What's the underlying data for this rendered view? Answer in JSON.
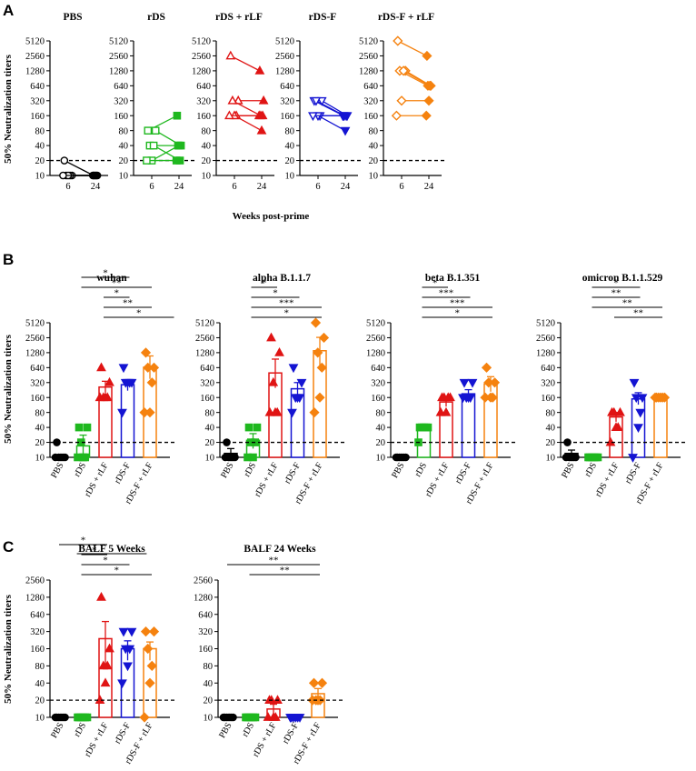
{
  "figure": {
    "panel_labels": [
      "A",
      "B",
      "C"
    ],
    "y_axis_label": "50% Neutralization titers",
    "a_x_axis_label": "Weeks post-prime",
    "threshold_titer": 20
  },
  "colors": {
    "PBS": "#000000",
    "rDS": "#1fb81f",
    "rDS + rLF": "#e01414",
    "rDS-F": "#1414d2",
    "rDS-F + rLF": "#f5820f"
  },
  "chart_data": [
    {
      "id": "A",
      "type": "scatter",
      "subtype": "paired-lines",
      "y_scale": "log2",
      "yticks": [
        10,
        20,
        40,
        80,
        160,
        320,
        640,
        1280,
        2560,
        5120
      ],
      "ylim": [
        10,
        5120
      ],
      "xticks": [
        6,
        24
      ],
      "xlabel": "Weeks post-prime",
      "ylabel": "50% Neutralization titers",
      "threshold": 20,
      "subplots": [
        {
          "title": "PBS",
          "group": "PBS",
          "pairs": [
            [
              20,
              10
            ],
            [
              10,
              10
            ],
            [
              10,
              10
            ],
            [
              10,
              10
            ],
            [
              10,
              10
            ],
            [
              10,
              10
            ]
          ]
        },
        {
          "title": "rDS",
          "group": "rDS",
          "pairs": [
            [
              80,
              160
            ],
            [
              80,
              40
            ],
            [
              40,
              40
            ],
            [
              40,
              20
            ],
            [
              20,
              40
            ],
            [
              20,
              20
            ]
          ]
        },
        {
          "title": "rDS + rLF",
          "group": "rDS + rLF",
          "pairs": [
            [
              2560,
              1280
            ],
            [
              320,
              320
            ],
            [
              320,
              160
            ],
            [
              160,
              160
            ],
            [
              160,
              80
            ],
            [
              160,
              160
            ]
          ]
        },
        {
          "title": "rDS-F",
          "group": "rDS-F",
          "pairs": [
            [
              320,
              160
            ],
            [
              320,
              160
            ],
            [
              320,
              160
            ],
            [
              160,
              160
            ],
            [
              160,
              80
            ],
            [
              160,
              160
            ]
          ]
        },
        {
          "title": "rDS-F + rLF",
          "group": "rDS-F + rLF",
          "pairs": [
            [
              5120,
              2560
            ],
            [
              1280,
              640
            ],
            [
              1280,
              640
            ],
            [
              1280,
              640
            ],
            [
              320,
              320
            ],
            [
              160,
              160
            ]
          ]
        }
      ]
    },
    {
      "id": "B",
      "type": "bar",
      "y_scale": "log2",
      "yticks": [
        10,
        20,
        40,
        80,
        160,
        320,
        640,
        1280,
        2560,
        5120
      ],
      "ylim": [
        10,
        5120
      ],
      "ylabel": "50% Neutralization titers",
      "categories": [
        "PBS",
        "rDS",
        "rDS + rLF",
        "rDS-F",
        "rDS-F + rLF"
      ],
      "threshold": 20,
      "subplots": [
        {
          "title": "wuhan",
          "means": [
            10,
            17,
            260,
            290,
            650
          ],
          "err_upper": [
            10,
            28,
            340,
            360,
            1100
          ],
          "err_lower": [
            10,
            11,
            200,
            220,
            380
          ],
          "points": [
            [
              20,
              10,
              10,
              10,
              10,
              10
            ],
            [
              40,
              40,
              20,
              10,
              10,
              10
            ],
            [
              640,
              320,
              160,
              160,
              160,
              160
            ],
            [
              640,
              320,
              320,
              320,
              320,
              80
            ],
            [
              1280,
              640,
              640,
              320,
              80,
              80
            ]
          ],
          "significance": [
            {
              "from": 2,
              "to": 5,
              "label": "*"
            },
            {
              "from": 2,
              "to": 4,
              "label": "**"
            },
            {
              "from": 2,
              "to": 3,
              "label": "*"
            },
            {
              "from": 1,
              "to": 4,
              "label": "**"
            },
            {
              "from": 1,
              "to": 3,
              "label": "*"
            }
          ]
        },
        {
          "title": "alpha B.1.1.7",
          "means": [
            12,
            22,
            500,
            240,
            1400
          ],
          "err_upper": [
            15,
            30,
            950,
            320,
            2600
          ],
          "err_lower": [
            10,
            15,
            250,
            180,
            700
          ],
          "points": [
            [
              20,
              10,
              10,
              10,
              10,
              10
            ],
            [
              40,
              40,
              20,
              20,
              10,
              10
            ],
            [
              2560,
              1280,
              320,
              80,
              80,
              80
            ],
            [
              640,
              320,
              160,
              160,
              160,
              80
            ],
            [
              5120,
              2560,
              1280,
              640,
              160,
              80
            ]
          ],
          "significance": [
            {
              "from": 1,
              "to": 4,
              "label": "*"
            },
            {
              "from": 1,
              "to": 4,
              "label": "***"
            },
            {
              "from": 1,
              "to": 3,
              "label": "*"
            },
            {
              "from": 1,
              "to": 2,
              "label": "*"
            }
          ]
        },
        {
          "title": "beta B.1.351",
          "means": [
            10,
            38,
            130,
            190,
            300
          ],
          "err_upper": [
            10,
            42,
            160,
            230,
            420
          ],
          "err_lower": [
            10,
            34,
            105,
            160,
            210
          ],
          "points": [
            [
              10,
              10,
              10,
              10,
              10,
              10
            ],
            [
              40,
              40,
              40,
              40,
              40,
              20
            ],
            [
              160,
              160,
              160,
              160,
              80,
              80
            ],
            [
              320,
              320,
              160,
              160,
              160,
              160
            ],
            [
              640,
              320,
              320,
              160,
              160,
              160
            ]
          ],
          "significance": [
            {
              "from": 1,
              "to": 4,
              "label": "*"
            },
            {
              "from": 1,
              "to": 4,
              "label": "***"
            },
            {
              "from": 1,
              "to": 3,
              "label": "***"
            },
            {
              "from": 1,
              "to": 2,
              "label": "*"
            }
          ]
        },
        {
          "title": "omicron B.1.1.529",
          "means": [
            12,
            10,
            65,
            150,
            150
          ],
          "err_upper": [
            14,
            10,
            80,
            200,
            160
          ],
          "err_lower": [
            10,
            10,
            52,
            115,
            140
          ],
          "points": [
            [
              20,
              10,
              10,
              10,
              10,
              10
            ],
            [
              10,
              10,
              10,
              10,
              10,
              10
            ],
            [
              80,
              80,
              80,
              40,
              40,
              20
            ],
            [
              320,
              160,
              160,
              80,
              40,
              10
            ],
            [
              160,
              160,
              160,
              160,
              160,
              160
            ]
          ],
          "significance": [
            {
              "from": 2,
              "to": 4,
              "label": "**"
            },
            {
              "from": 1,
              "to": 4,
              "label": "**"
            },
            {
              "from": 1,
              "to": 3,
              "label": "**"
            },
            {
              "from": 1,
              "to": 3,
              "label": "*"
            }
          ]
        }
      ]
    },
    {
      "id": "C",
      "type": "bar",
      "y_scale": "log2",
      "yticks": [
        10,
        20,
        40,
        80,
        160,
        320,
        640,
        1280,
        2560
      ],
      "ylim": [
        10,
        2560
      ],
      "ylabel": "50% Neutralization titers",
      "categories": [
        "PBS",
        "rDS",
        "rDS + rLF",
        "rDS-F",
        "rDS-F + rLF"
      ],
      "threshold": 20,
      "subplots": [
        {
          "title": "BALF 5 Weeks",
          "means": [
            10,
            10,
            240,
            160,
            160
          ],
          "err_upper": [
            10,
            10,
            480,
            220,
            210
          ],
          "err_lower": [
            10,
            10,
            70,
            100,
            100
          ],
          "points": [
            [
              10,
              10,
              10,
              10,
              10,
              10
            ],
            [
              10,
              10,
              10,
              10,
              10,
              10
            ],
            [
              1280,
              160,
              80,
              80,
              40,
              20
            ],
            [
              320,
              320,
              160,
              160,
              80,
              40
            ],
            [
              320,
              320,
              160,
              80,
              40,
              10
            ]
          ],
          "significance": [
            {
              "from": 1,
              "to": 4,
              "label": "*"
            },
            {
              "from": 1,
              "to": 3,
              "label": "*"
            },
            {
              "from": 1,
              "to": 2,
              "label": "*"
            },
            {
              "from": 0,
              "to": 2,
              "label": "*"
            }
          ]
        },
        {
          "title": "BALF 24 Weeks",
          "means": [
            10,
            10,
            14,
            10,
            26
          ],
          "err_upper": [
            10,
            10,
            17,
            10,
            32
          ],
          "err_lower": [
            10,
            10,
            11,
            10,
            21
          ],
          "points": [
            [
              10,
              10,
              10,
              10,
              10,
              10
            ],
            [
              10,
              10,
              10,
              10,
              10,
              10
            ],
            [
              20,
              20,
              20,
              10,
              10,
              10
            ],
            [
              10,
              10,
              10,
              10,
              10,
              10
            ],
            [
              40,
              40,
              20,
              20,
              20,
              20
            ]
          ],
          "significance": [
            {
              "from": 1,
              "to": 4,
              "label": "**"
            },
            {
              "from": 0,
              "to": 4,
              "label": "**"
            }
          ]
        }
      ]
    }
  ]
}
